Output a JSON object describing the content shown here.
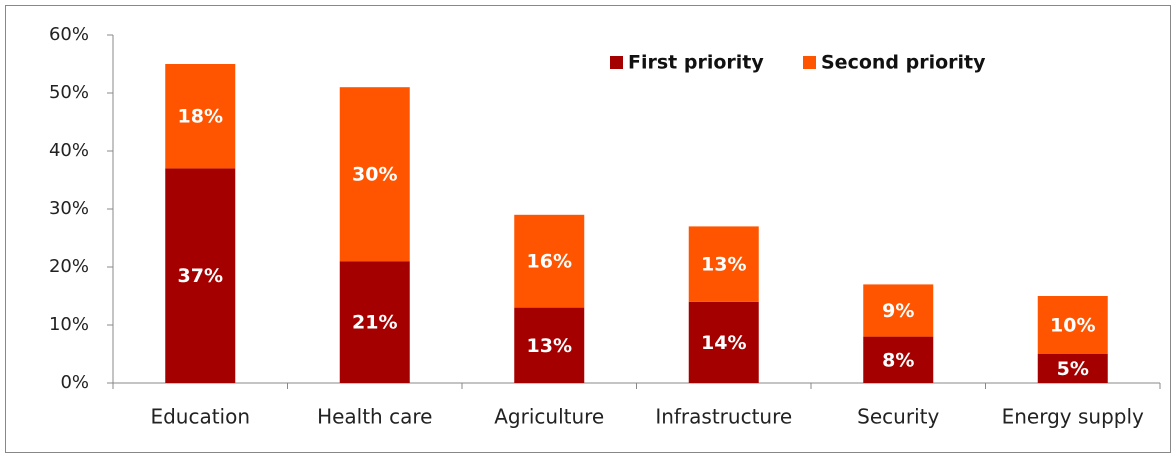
{
  "chart_data": {
    "type": "stacked_bar",
    "categories": [
      "Education",
      "Health care",
      "Agriculture",
      "Infrastructure",
      "Security",
      "Energy supply"
    ],
    "series": [
      {
        "name": "First priority",
        "color": "#a50000",
        "values": [
          37,
          21,
          13,
          14,
          8,
          5
        ],
        "value_labels": [
          "37%",
          "21%",
          "13%",
          "14%",
          "8%",
          "5%"
        ]
      },
      {
        "name": "Second priority",
        "color": "#ff5500",
        "values": [
          18,
          30,
          16,
          13,
          9,
          10
        ],
        "value_labels": [
          "18%",
          "30%",
          "16%",
          "13%",
          "9%",
          "10%"
        ]
      }
    ],
    "ylim": [
      0,
      60
    ],
    "yticks": [
      {
        "value": 0,
        "label": "0%"
      },
      {
        "value": 10,
        "label": "10%"
      },
      {
        "value": 20,
        "label": "20%"
      },
      {
        "value": 30,
        "label": "30%"
      },
      {
        "value": 40,
        "label": "40%"
      },
      {
        "value": 50,
        "label": "50%"
      },
      {
        "value": 60,
        "label": "60%"
      }
    ],
    "legend": "top-right"
  }
}
